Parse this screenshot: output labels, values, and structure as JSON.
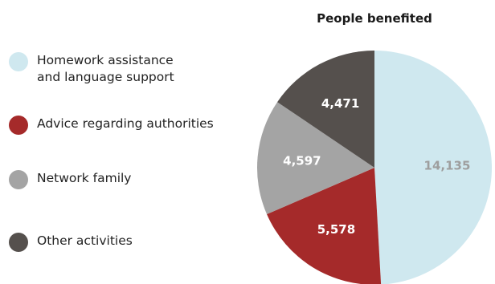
{
  "chart_data": {
    "type": "pie",
    "title": "People benefited",
    "slices": [
      {
        "label": "Homework assistance and language support",
        "label_lines": [
          "Homework assistance",
          "and language support"
        ],
        "value": 14135,
        "display": "14,135",
        "color": "#cfe8ef",
        "label_color": "#9e9e9e"
      },
      {
        "label": "Advice regarding authorities",
        "label_lines": [
          "Advice regarding authorities"
        ],
        "value": 5578,
        "display": "5,578",
        "color": "#a52a2a",
        "label_color": "#ffffff"
      },
      {
        "label": "Network family",
        "label_lines": [
          "Network family"
        ],
        "value": 4597,
        "display": "4,597",
        "color": "#a4a4a4",
        "label_color": "#ffffff"
      },
      {
        "label": "Other activities",
        "label_lines": [
          "Other activities"
        ],
        "value": 4471,
        "display": "4,471",
        "color": "#55504d",
        "label_color": "#ffffff"
      }
    ],
    "legend_position": "left"
  }
}
